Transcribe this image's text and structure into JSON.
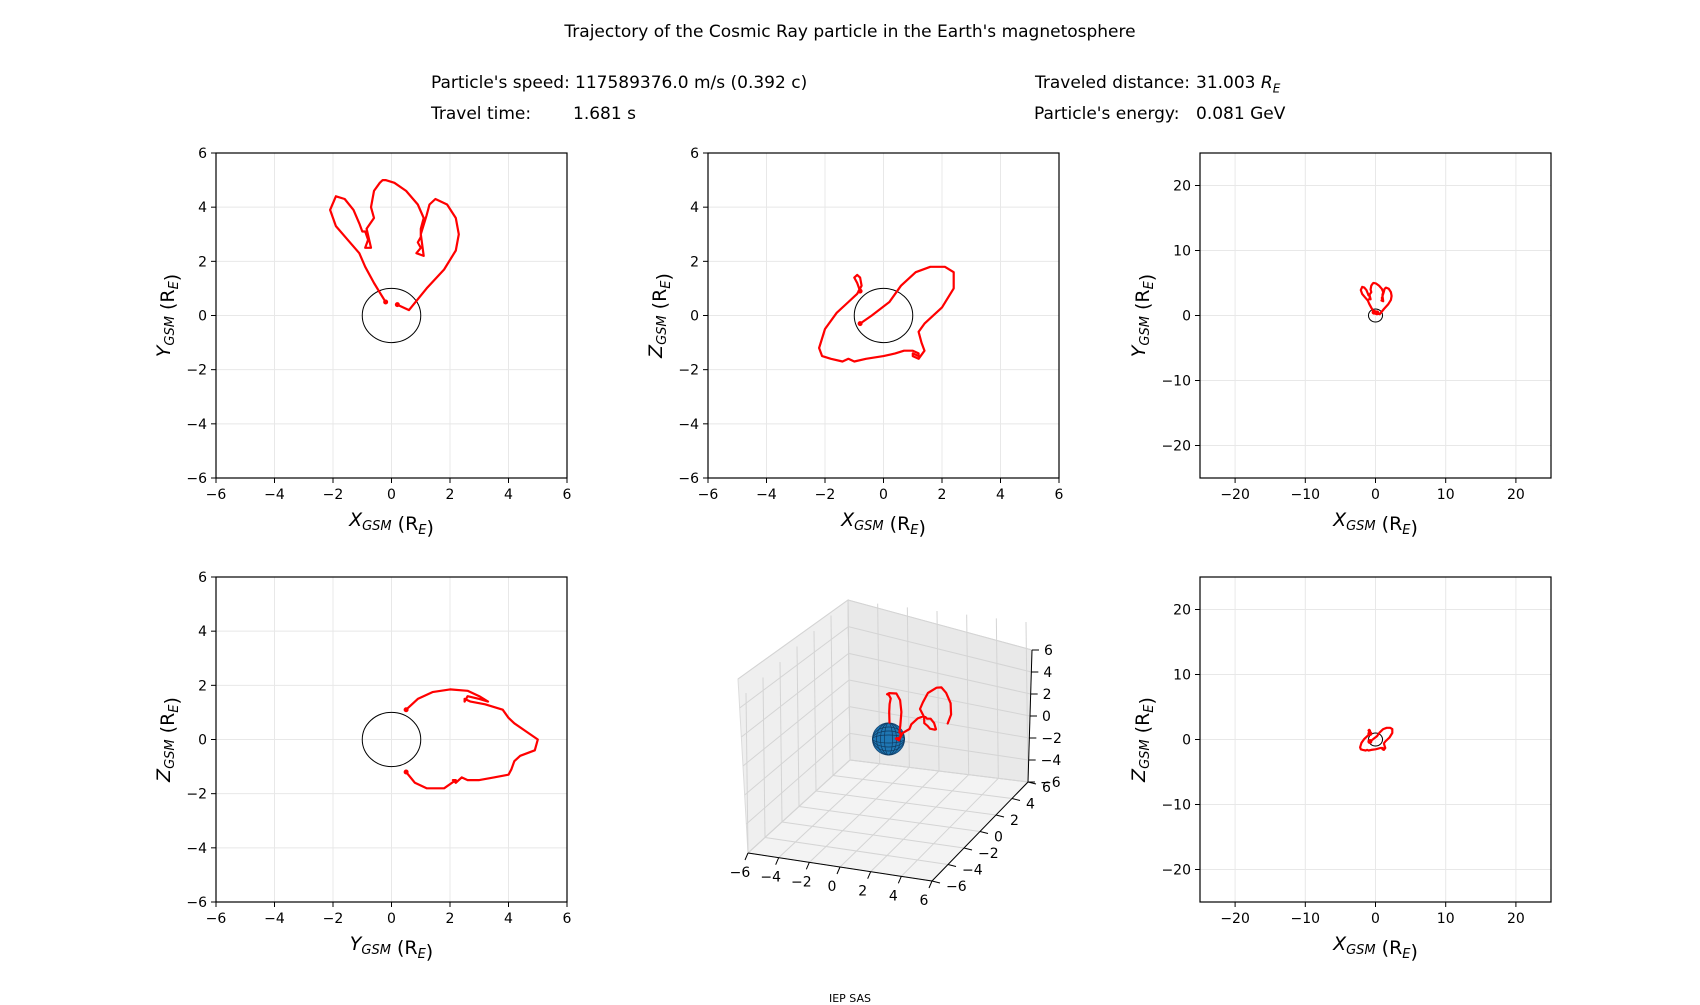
{
  "header": {
    "title": "Trajectory of the Cosmic Ray particle in the Earth's magnetosphere",
    "speed_label": "Particle's speed:",
    "speed_value": "117589376.0 m/s (0.392 c)",
    "time_label": "Travel time:",
    "time_value": "1.681 s",
    "distance_label": "Traveled distance:",
    "distance_value": "31.003",
    "distance_unit": "R",
    "distance_unit_sub": "E",
    "energy_label": "Particle's energy:",
    "energy_value": "0.081 GeV"
  },
  "footer": "IEP SAS",
  "colors": {
    "trajectory": "#ff0000",
    "earth_3d": "#1f77b4"
  },
  "chart_data": [
    {
      "type": "line",
      "panel": "xy-zoom",
      "xlabel": "X",
      "xlabel_sub": "GSM",
      "xlabel_unit": "(R",
      "xlabel_unit_sub": "E",
      "ylabel": "Y",
      "ylabel_sub": "GSM",
      "ylabel_unit": "(R",
      "ylabel_unit_sub": "E",
      "xlim": [
        -6,
        6
      ],
      "ylim": [
        -6,
        6
      ],
      "xticks": [
        -6,
        -4,
        -2,
        0,
        2,
        4,
        6
      ],
      "yticks": [
        -6,
        -4,
        -2,
        0,
        2,
        4,
        6
      ],
      "grid": true,
      "earth_radius": 1,
      "trajectory": {
        "x": [
          -0.2,
          -0.6,
          -0.9,
          -1.1,
          -1.5,
          -1.9,
          -2.1,
          -1.9,
          -1.6,
          -1.3,
          -1.1,
          -1.0,
          -0.9,
          -0.8,
          -0.9,
          -0.7,
          -0.85,
          -0.6,
          -0.7,
          -0.6,
          -0.4,
          -0.3,
          -0.2,
          0.1,
          0.5,
          0.9,
          1.1,
          1.0,
          1.0,
          0.9,
          1.0,
          0.85,
          1.1,
          1.0,
          1.2,
          1.3,
          1.5,
          1.9,
          2.2,
          2.3,
          2.2,
          1.8,
          1.2,
          0.6,
          0.2
        ],
        "y": [
          0.5,
          1.2,
          1.8,
          2.3,
          2.8,
          3.3,
          3.9,
          4.4,
          4.3,
          3.9,
          3.4,
          3.1,
          3.1,
          2.8,
          2.5,
          2.5,
          3.2,
          3.6,
          4.0,
          4.6,
          4.9,
          5.0,
          5.0,
          4.9,
          4.6,
          4.1,
          3.6,
          3.2,
          2.9,
          2.7,
          2.5,
          2.3,
          2.2,
          3.0,
          3.7,
          4.1,
          4.3,
          4.1,
          3.6,
          3.0,
          2.4,
          1.7,
          1.0,
          0.2,
          0.4
        ]
      }
    },
    {
      "type": "line",
      "panel": "xz-zoom",
      "xlabel": "X",
      "xlabel_sub": "GSM",
      "xlabel_unit": "(R",
      "xlabel_unit_sub": "E",
      "ylabel": "Z",
      "ylabel_sub": "GSM",
      "ylabel_unit": "(R",
      "ylabel_unit_sub": "E",
      "xlim": [
        -6,
        6
      ],
      "ylim": [
        -6,
        6
      ],
      "xticks": [
        -6,
        -4,
        -2,
        0,
        2,
        4,
        6
      ],
      "yticks": [
        -6,
        -4,
        -2,
        0,
        2,
        4,
        6
      ],
      "grid": true,
      "earth_radius": 1,
      "trajectory": {
        "x": [
          -0.8,
          -0.9,
          -1.0,
          -0.9,
          -0.8,
          -0.75,
          -0.9,
          -1.2,
          -1.6,
          -2.0,
          -2.2,
          -2.1,
          -1.8,
          -1.4,
          -1.2,
          -1.0,
          -0.6,
          0.0,
          0.4,
          0.7,
          1.0,
          1.2,
          1.2,
          1.0,
          1.0,
          1.2,
          1.4,
          1.3,
          1.2,
          1.4,
          2.0,
          2.4,
          2.4,
          2.1,
          1.6,
          1.1,
          0.6,
          0.2,
          -0.4,
          -0.8
        ],
        "y": [
          0.9,
          1.2,
          1.4,
          1.5,
          1.4,
          1.1,
          0.8,
          0.5,
          0.1,
          -0.5,
          -1.2,
          -1.5,
          -1.6,
          -1.7,
          -1.6,
          -1.7,
          -1.6,
          -1.5,
          -1.4,
          -1.3,
          -1.3,
          -1.4,
          -1.5,
          -1.4,
          -1.5,
          -1.6,
          -1.3,
          -1.0,
          -0.6,
          -0.3,
          0.3,
          1.0,
          1.6,
          1.8,
          1.8,
          1.6,
          1.1,
          0.5,
          0.0,
          -0.3
        ]
      }
    },
    {
      "type": "line",
      "panel": "xy-wide",
      "xlabel": "X",
      "xlabel_sub": "GSM",
      "xlabel_unit": "(R",
      "xlabel_unit_sub": "E",
      "ylabel": "Y",
      "ylabel_sub": "GSM",
      "ylabel_unit": "(R",
      "ylabel_unit_sub": "E",
      "xlim": [
        -25,
        25
      ],
      "ylim": [
        -25,
        25
      ],
      "xticks": [
        -20,
        -10,
        0,
        10,
        20
      ],
      "yticks": [
        -20,
        -10,
        0,
        10,
        20
      ],
      "grid": true,
      "earth_radius": 1,
      "trajectory_ref": 0
    },
    {
      "type": "line",
      "panel": "yz-zoom",
      "xlabel": "Y",
      "xlabel_sub": "GSM",
      "xlabel_unit": "(R",
      "xlabel_unit_sub": "E",
      "ylabel": "Z",
      "ylabel_sub": "GSM",
      "ylabel_unit": "(R",
      "ylabel_unit_sub": "E",
      "xlim": [
        -6,
        6
      ],
      "ylim": [
        -6,
        6
      ],
      "xticks": [
        -6,
        -4,
        -2,
        0,
        2,
        4,
        6
      ],
      "yticks": [
        -6,
        -4,
        -2,
        0,
        2,
        4,
        6
      ],
      "grid": true,
      "earth_radius": 1,
      "trajectory": {
        "x": [
          0.5,
          0.9,
          1.4,
          2.0,
          2.6,
          3.0,
          3.3,
          3.0,
          2.6,
          2.5,
          2.5,
          2.7,
          3.2,
          3.8,
          4.0,
          4.2,
          4.6,
          5.0,
          4.9,
          4.4,
          4.2,
          4.1,
          4.0,
          3.5,
          3.0,
          2.6,
          2.4,
          2.3,
          2.2,
          2.1,
          2.2,
          1.8,
          1.2,
          0.8,
          0.5
        ],
        "y": [
          1.1,
          1.5,
          1.75,
          1.85,
          1.8,
          1.6,
          1.4,
          1.5,
          1.6,
          1.4,
          1.5,
          1.4,
          1.3,
          1.1,
          0.8,
          0.6,
          0.3,
          0.0,
          -0.4,
          -0.6,
          -0.8,
          -1.1,
          -1.3,
          -1.4,
          -1.5,
          -1.5,
          -1.4,
          -1.5,
          -1.6,
          -1.5,
          -1.5,
          -1.8,
          -1.8,
          -1.6,
          -1.2
        ]
      }
    },
    {
      "type": "line",
      "panel": "3d",
      "xlim": [
        -6,
        6
      ],
      "ylim": [
        -6,
        6
      ],
      "zlim": [
        -6,
        6
      ],
      "xticks": [
        -6,
        -4,
        -2,
        0,
        2,
        4,
        6
      ],
      "yticks": [
        -6,
        -4,
        -2,
        0,
        2,
        4,
        6
      ],
      "zticks": [
        -6,
        -4,
        -2,
        0,
        2,
        4,
        6
      ],
      "grid": true
    },
    {
      "type": "line",
      "panel": "xz-wide",
      "xlabel": "X",
      "xlabel_sub": "GSM",
      "xlabel_unit": "(R",
      "xlabel_unit_sub": "E",
      "ylabel": "Z",
      "ylabel_sub": "GSM",
      "ylabel_unit": "(R",
      "ylabel_unit_sub": "E",
      "xlim": [
        -25,
        25
      ],
      "ylim": [
        -25,
        25
      ],
      "xticks": [
        -20,
        -10,
        0,
        10,
        20
      ],
      "yticks": [
        -20,
        -10,
        0,
        10,
        20
      ],
      "grid": true,
      "earth_radius": 1,
      "trajectory_ref": 1
    }
  ]
}
